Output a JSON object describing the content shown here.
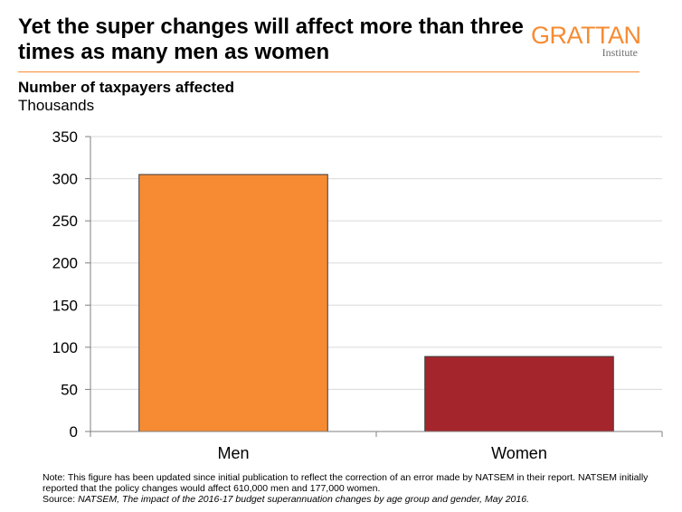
{
  "header": {
    "title": "Yet the super changes will affect more than three times as many men as women",
    "logo_name": "GRATTAN",
    "logo_sub": "Institute",
    "brand_color": "#F68B33"
  },
  "chart_data": {
    "type": "bar",
    "title": "Number of taxpayers affected",
    "subtitle": "Thousands",
    "categories": [
      "Men",
      "Women"
    ],
    "values": [
      305,
      89
    ],
    "bar_colors": [
      "#F68B33",
      "#A4262C"
    ],
    "ylim": [
      0,
      350
    ],
    "yticks": [
      0,
      50,
      100,
      150,
      200,
      250,
      300,
      350
    ],
    "grid": true
  },
  "footer": {
    "note": "Note: This figure has been updated since initial publication to reflect the correction of an error made by NATSEM in their report. NATSEM initially reported that the policy changes would affect 610,000 men and 177,000 women.",
    "source_label": "Source: ",
    "source_text": "NATSEM, The impact of the 2016-17 budget superannuation changes by age group and gender, May 2016."
  }
}
